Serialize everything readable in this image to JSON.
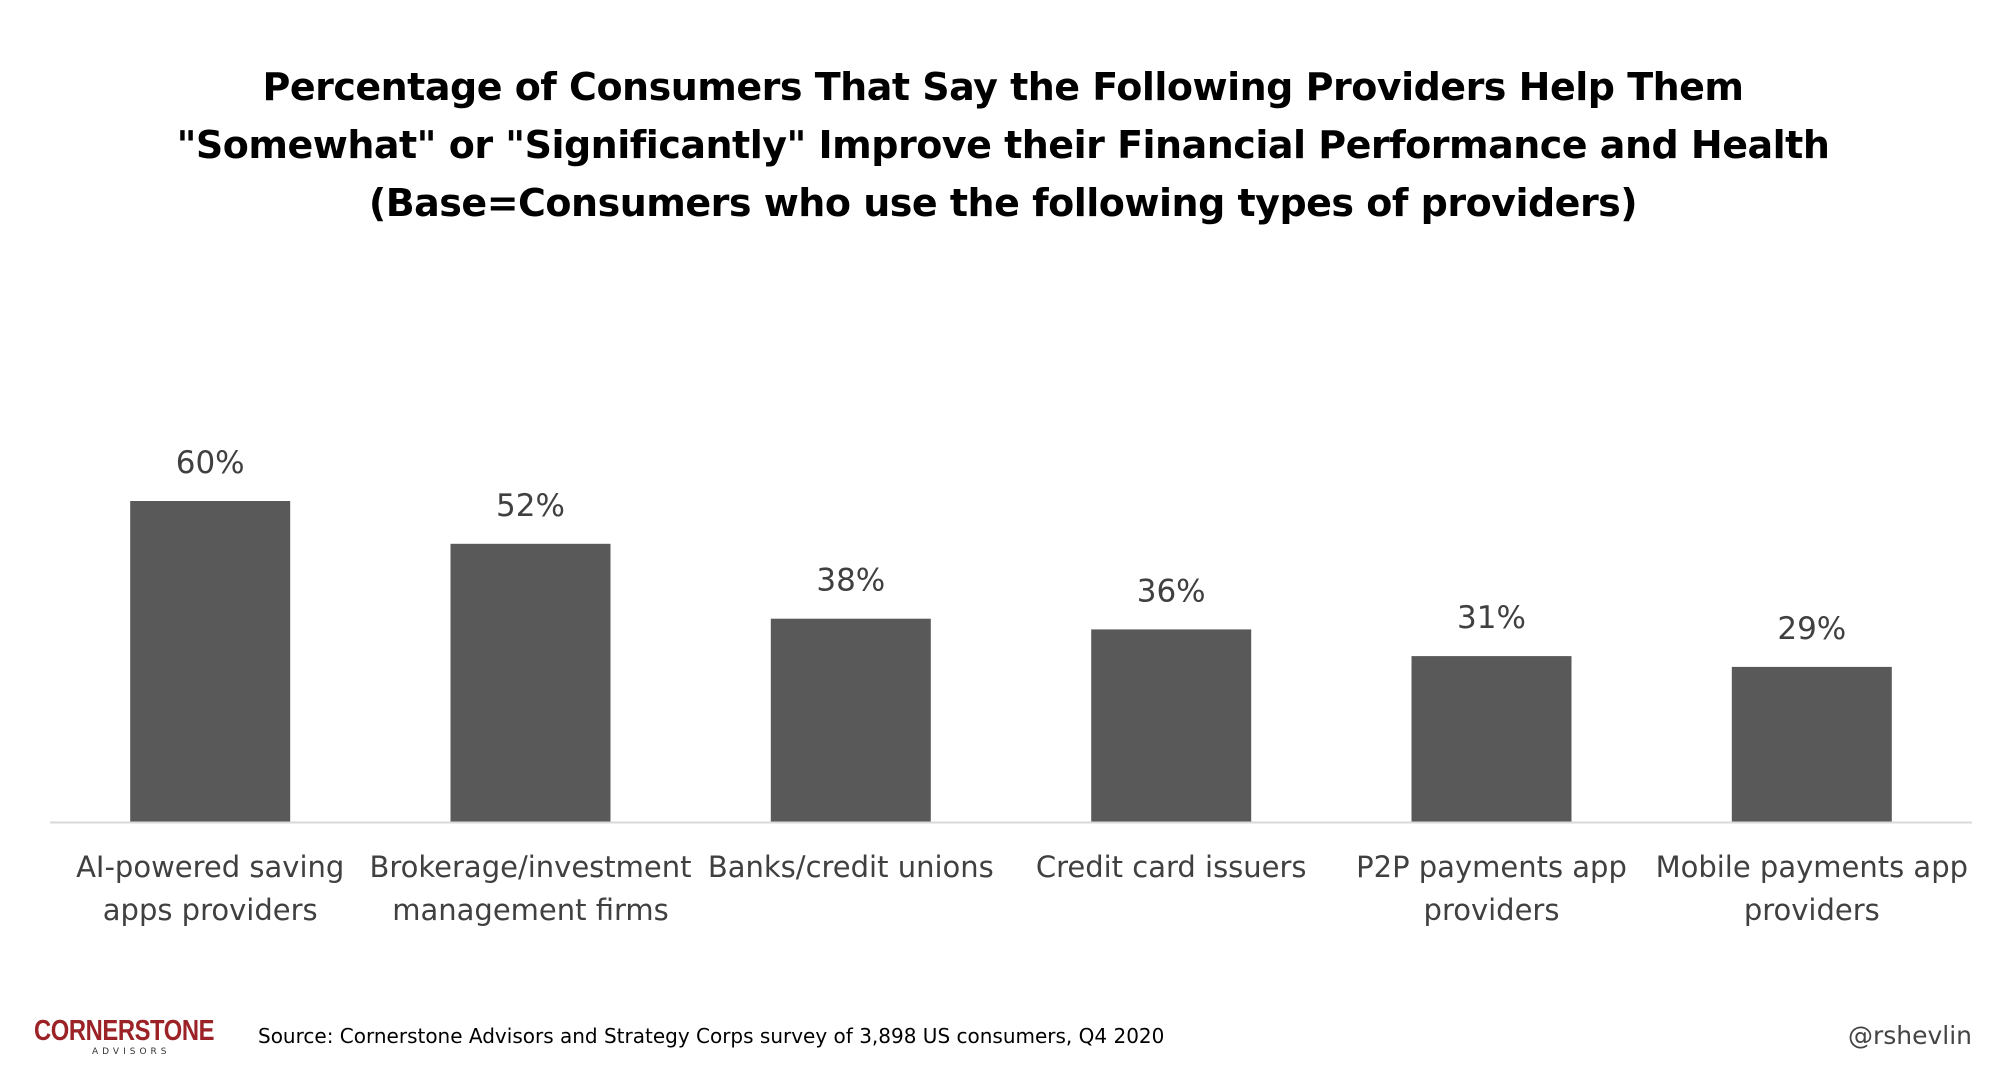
{
  "chart_data": {
    "type": "bar",
    "title_lines": [
      "Percentage of Consumers That Say the Following Providers Help Them",
      "\"Somewhat\" or \"Significantly\" Improve their Financial Performance and Health",
      "(Base=Consumers who use the following types of providers)"
    ],
    "categories": [
      [
        "AI-powered saving",
        "apps providers"
      ],
      [
        "Brokerage/investment",
        "management firms"
      ],
      [
        "Banks/credit unions"
      ],
      [
        "Credit card issuers"
      ],
      [
        "P2P payments app",
        "providers"
      ],
      [
        "Mobile payments app",
        "providers"
      ]
    ],
    "values": [
      60,
      52,
      38,
      36,
      31,
      29
    ],
    "data_labels": [
      "60%",
      "52%",
      "38%",
      "36%",
      "31%",
      "29%"
    ],
    "ylim": [
      0,
      100
    ],
    "grid": false,
    "legend": "none",
    "bar_color": "#595959",
    "axis_color": "#d9d9d9"
  },
  "footer": {
    "source": "Source: Cornerstone Advisors and Strategy Corps survey of 3,898 US consumers, Q4 2020",
    "handle": "@rshevlin",
    "logo_main": "CORNERSTONE",
    "logo_sub": "ADVISORS",
    "logo_color": "#9b2226"
  }
}
